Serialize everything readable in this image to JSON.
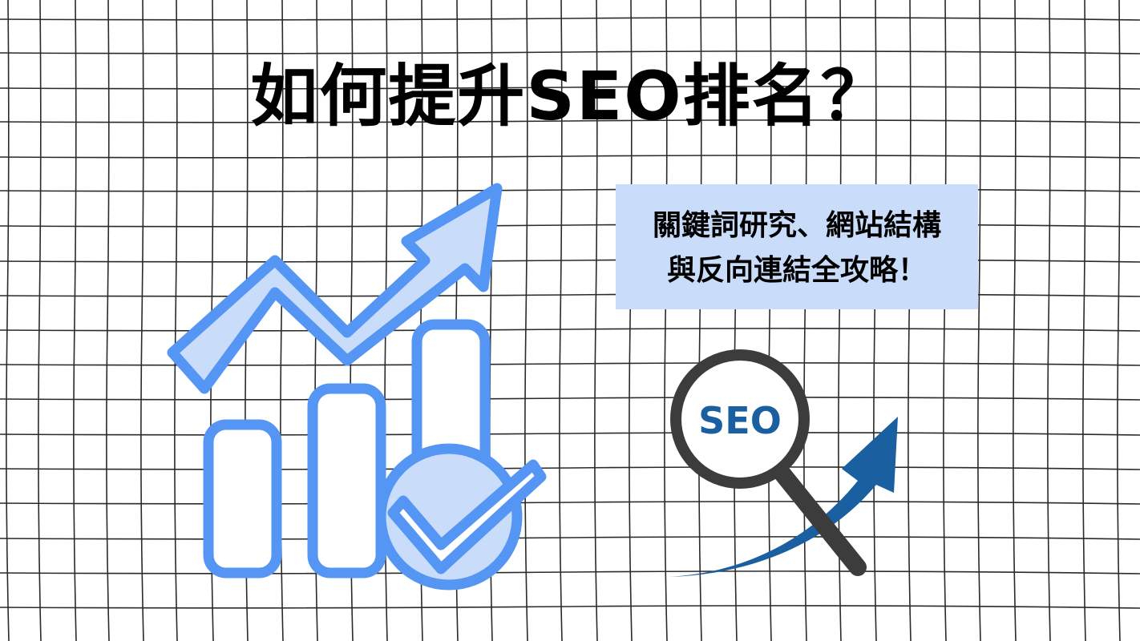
{
  "title": "如何提升SEO排名？",
  "subtitle": {
    "line1": "關鍵詞研究、網站結構",
    "line2": "與反向連結全攻略！"
  },
  "magnifier_label": "SEO",
  "icons": [
    "growth-chart-icon",
    "checkmark-icon",
    "magnifying-glass-icon",
    "upward-arrow-icon"
  ],
  "colors": {
    "background": "#ffffff",
    "grid_line": "#2a2a2a",
    "title_text": "#000000",
    "subtitle_box": "#c9dcf9",
    "chart_stroke": "#5596f4",
    "chart_fill": "#c9dcf9",
    "seo_blue": "#1a5fa0",
    "magnifier_gray": "#3c3c3c"
  }
}
